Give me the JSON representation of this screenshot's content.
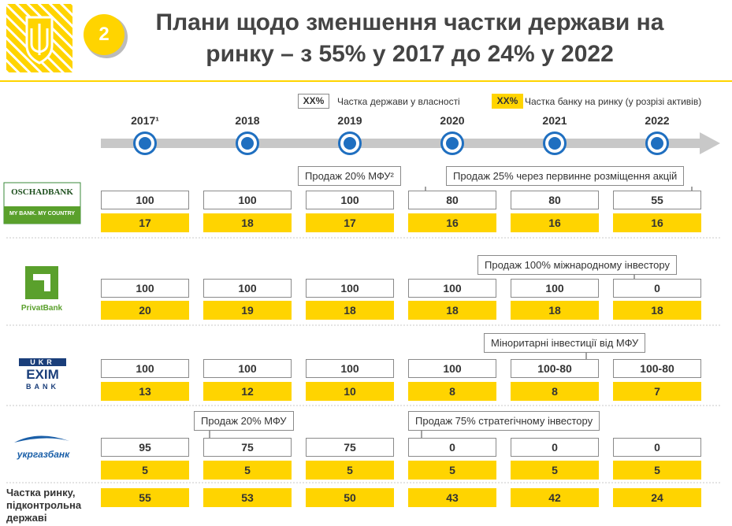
{
  "header": {
    "number": "2",
    "title_line1": "Плани щодо зменшення частки держави на",
    "title_line2": "ринку – з 55% у 2017 до 24% у 2022"
  },
  "legend": [
    {
      "marker": "XX%",
      "text": "Частка держави у власності"
    },
    {
      "marker": "XX%",
      "text": "Частка банку на ринку (у розрізі активів)"
    }
  ],
  "years": [
    "2017¹",
    "2018",
    "2019",
    "2020",
    "2021",
    "2022"
  ],
  "banks": [
    {
      "logo": [
        "OSCHADBANK",
        "MY BANK. MY COUNTRY"
      ],
      "state_share": [
        100,
        100,
        100,
        80,
        80,
        55
      ],
      "market_share": [
        17,
        18,
        17,
        16,
        16,
        16
      ],
      "notes": [
        "Продаж 20% МФУ²",
        "Продаж 25% через первинне розміщення акцій"
      ]
    },
    {
      "logo": [
        "PrivatBank"
      ],
      "state_share": [
        100,
        100,
        100,
        100,
        100,
        0
      ],
      "market_share": [
        20,
        19,
        18,
        18,
        18,
        18
      ],
      "notes": [
        "Продаж 100% міжнародному інвестору"
      ]
    },
    {
      "logo": [
        "UKR",
        "EXIM",
        "BANK"
      ],
      "state_share": [
        100,
        100,
        100,
        100,
        "100-80",
        "100-80"
      ],
      "market_share": [
        13,
        12,
        10,
        8,
        8,
        7
      ],
      "notes": [
        "Міноритарні інвестиції від МФУ"
      ]
    },
    {
      "logo": [
        "укргазбанк"
      ],
      "state_share": [
        95,
        75,
        75,
        0,
        0,
        0
      ],
      "market_share": [
        5,
        5,
        5,
        5,
        5,
        5
      ],
      "notes": [
        "Продаж 20% МФУ",
        "Продаж 75% стратегічному інвестору"
      ]
    }
  ],
  "total": {
    "label": [
      "Частка ринку,",
      "підконтрольна",
      "державі"
    ],
    "values": [
      55,
      53,
      50,
      43,
      42,
      24
    ]
  }
}
